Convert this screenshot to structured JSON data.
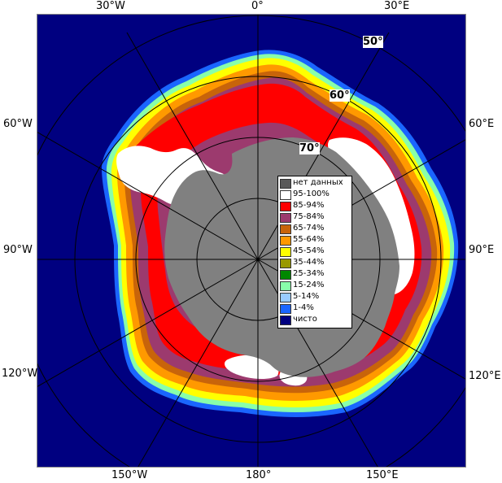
{
  "labels": {
    "lon_top": [
      "30°W",
      "0°",
      "30°E"
    ],
    "lon_left": [
      "60°W",
      "90°W",
      "120°W"
    ],
    "lon_right": [
      "60°E",
      "90°E",
      "120°E"
    ],
    "lon_bottom": [
      "150°W",
      "180°",
      "150°E"
    ],
    "lat": [
      "50°",
      "60°",
      "70°"
    ]
  },
  "legend": {
    "items": [
      {
        "label": "нет данных",
        "color": "#595959"
      },
      {
        "label": "95-100%",
        "color": "#ffffff"
      },
      {
        "label": "85-94%",
        "color": "#ff0000"
      },
      {
        "label": "75-84%",
        "color": "#9c3a6e"
      },
      {
        "label": "65-74%",
        "color": "#c8640a"
      },
      {
        "label": "55-64%",
        "color": "#ff9900"
      },
      {
        "label": "45-54%",
        "color": "#ffff00"
      },
      {
        "label": "35-44%",
        "color": "#999900"
      },
      {
        "label": "25-34%",
        "color": "#008800"
      },
      {
        "label": "15-24%",
        "color": "#88ffaa"
      },
      {
        "label": "5-14%",
        "color": "#99ccff"
      },
      {
        "label": "1-4%",
        "color": "#1a66ff"
      },
      {
        "label": "чисто",
        "color": "#000080"
      }
    ]
  },
  "colors": {
    "ocean": "#000080",
    "land": "#808080",
    "frame": "#ffffff"
  }
}
